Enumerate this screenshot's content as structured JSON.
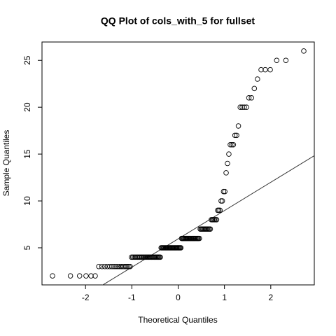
{
  "chart_data": {
    "type": "qq",
    "title": "QQ Plot of cols_with_5 for fullset",
    "x_label": "Theoretical Quantiles",
    "y_label": "Sample Quantiles",
    "x": [
      -2.713,
      -2.326,
      -2.128,
      -1.989,
      -1.881,
      -1.791,
      -1.713,
      -1.645,
      -1.583,
      -1.527,
      -1.476,
      -1.428,
      -1.383,
      -1.341,
      -1.301,
      -1.263,
      -1.227,
      -1.192,
      -1.159,
      -1.126,
      -1.095,
      -1.065,
      -1.036,
      -1.008,
      -0.981,
      -0.954,
      -0.928,
      -0.903,
      -0.878,
      -0.854,
      -0.83,
      -0.806,
      -0.783,
      -0.761,
      -0.739,
      -0.717,
      -0.695,
      -0.674,
      -0.654,
      -0.633,
      -0.613,
      -0.593,
      -0.573,
      -0.553,
      -0.534,
      -0.515,
      -0.496,
      -0.477,
      -0.459,
      -0.44,
      -0.422,
      -0.404,
      -0.385,
      -0.367,
      -0.349,
      -0.332,
      -0.314,
      -0.297,
      -0.279,
      -0.262,
      -0.245,
      -0.228,
      -0.21,
      -0.193,
      -0.176,
      -0.16,
      -0.143,
      -0.126,
      -0.109,
      -0.092,
      -0.075,
      -0.059,
      -0.042,
      -0.025,
      -0.008,
      0.008,
      0.025,
      0.042,
      0.059,
      0.075,
      0.092,
      0.109,
      0.126,
      0.143,
      0.16,
      0.176,
      0.193,
      0.21,
      0.228,
      0.245,
      0.262,
      0.279,
      0.297,
      0.314,
      0.332,
      0.349,
      0.367,
      0.385,
      0.404,
      0.422,
      0.44,
      0.459,
      0.477,
      0.496,
      0.515,
      0.534,
      0.553,
      0.573,
      0.593,
      0.613,
      0.633,
      0.654,
      0.674,
      0.695,
      0.717,
      0.739,
      0.761,
      0.783,
      0.806,
      0.83,
      0.854,
      0.878,
      0.903,
      0.928,
      0.954,
      0.981,
      1.008,
      1.036,
      1.065,
      1.095,
      1.126,
      1.159,
      1.192,
      1.227,
      1.263,
      1.301,
      1.341,
      1.383,
      1.428,
      1.476,
      1.527,
      1.583,
      1.645,
      1.713,
      1.791,
      1.881,
      1.989,
      2.128,
      2.326,
      2.713
    ],
    "values": [
      2,
      2,
      2,
      2,
      2,
      2,
      3,
      3,
      3,
      3,
      3,
      3,
      3,
      3,
      3,
      3,
      3,
      3,
      3,
      3,
      3,
      3,
      3,
      4,
      4,
      4,
      4,
      4,
      4,
      4,
      4,
      4,
      4,
      4,
      4,
      4,
      4,
      4,
      4,
      4,
      4,
      4,
      4,
      4,
      4,
      4,
      4,
      4,
      4,
      4,
      4,
      4,
      4,
      5,
      5,
      5,
      5,
      5,
      5,
      5,
      5,
      5,
      5,
      5,
      5,
      5,
      5,
      5,
      5,
      5,
      5,
      5,
      5,
      5,
      5,
      5,
      5,
      5,
      5,
      6,
      6,
      6,
      6,
      6,
      6,
      6,
      6,
      6,
      6,
      6,
      6,
      6,
      6,
      6,
      6,
      6,
      6,
      6,
      6,
      6,
      6,
      6,
      7,
      7,
      7,
      7,
      7,
      7,
      7,
      7,
      7,
      7,
      7,
      7,
      8,
      8,
      8,
      8,
      8,
      8,
      9,
      9,
      9,
      10,
      10,
      11,
      11,
      13,
      14,
      15,
      16,
      16,
      16,
      17,
      17,
      18,
      20,
      20,
      20,
      20,
      21,
      21,
      22,
      23,
      24,
      24,
      24,
      25,
      25,
      26
    ],
    "reference_line": {
      "slope": 3.02,
      "intercept": 5.95
    },
    "color": "#000000",
    "xlim": [
      -2.94,
      2.94
    ],
    "ylim": [
      1.04,
      26.96
    ],
    "xticks": [
      -2,
      -1,
      0,
      1,
      2
    ],
    "yticks": [
      5,
      10,
      15,
      20,
      25
    ]
  }
}
